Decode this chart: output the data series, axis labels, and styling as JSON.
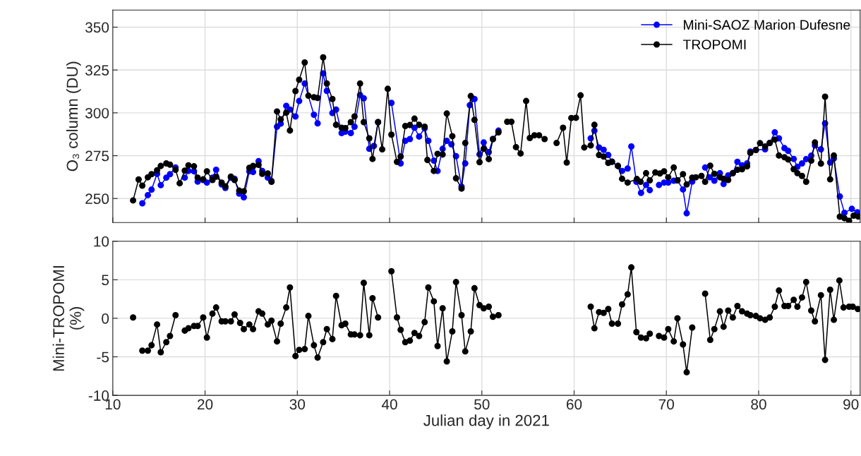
{
  "chart_data": [
    {
      "type": "line",
      "ylabel": "O₃ column (DU)",
      "xlim": [
        10,
        91
      ],
      "xticks": [
        10,
        20,
        30,
        40,
        50,
        60,
        70,
        80,
        90
      ],
      "ylim": [
        236,
        360
      ],
      "yticks": [
        250,
        275,
        300,
        325,
        350
      ],
      "tick_labels": "y",
      "grid": true,
      "marker": "circle",
      "line_style": "solid",
      "legend": "top right",
      "series": [
        {
          "name": "Mini-SAOZ Marion Dufesne",
          "color": "#0000ff",
          "x": [
            13.2,
            13.8,
            14.2,
            14.8,
            15.2,
            15.8,
            16.2,
            16.8,
            17.3,
            17.8,
            18.2,
            18.8,
            19.2,
            19.8,
            20.2,
            20.8,
            21.2,
            21.8,
            22.2,
            22.8,
            23.2,
            23.7,
            24.2,
            24.8,
            25.2,
            25.8,
            26.2,
            26.8,
            27.2,
            27.8,
            28.2,
            28.8,
            29.2,
            29.8,
            30.2,
            30.8,
            31.8,
            32.2,
            32.8,
            33.2,
            33.8,
            34.2,
            34.8,
            35.2,
            35.8,
            36.2,
            36.8,
            37.2,
            37.8,
            38.3,
            38.75,
            39.5,
            40.2,
            41.2,
            41.7,
            42.2,
            42.7,
            43.2,
            43.8,
            44.2,
            44.8,
            45.2,
            45.75,
            46.2,
            46.7,
            47.2,
            47.8,
            48.2,
            48.7,
            49.2,
            49.75,
            50.2,
            50.75,
            51.2,
            51.8,
            56.8,
            61.8,
            62.2,
            62.7,
            63.2,
            63.7,
            64.1,
            64.75,
            65.2,
            65.8,
            66.2,
            66.75,
            67.25,
            67.8,
            68.2,
            68.7,
            69.2,
            69.75,
            70.2,
            70.8,
            71.2,
            71.8,
            72.2,
            72.8,
            73.5,
            74.2,
            74.7,
            75.2,
            75.8,
            76.2,
            76.7,
            77.2,
            77.7,
            78.2,
            78.75,
            79.1,
            79.7,
            80.7,
            81.2,
            81.75,
            82.2,
            82.8,
            83.2,
            83.8,
            84.2,
            84.7,
            85.15,
            85.7,
            86.1,
            86.75,
            87.2,
            87.75,
            88.15,
            88.8,
            89.3,
            90.1,
            90.7
          ],
          "values": [
            247.2,
            252,
            255.2,
            264.4,
            257.8,
            262.2,
            264.2,
            268.1,
            null,
            262.2,
            266.1,
            265.9,
            259.9,
            260.8,
            259.3,
            262.2,
            266.8,
            258.2,
            256.2,
            262.2,
            261.5,
            252.9,
            250.7,
            265.9,
            265.5,
            271.8,
            266.1,
            262.2,
            260.2,
            291.9,
            293.7,
            304.1,
            301.9,
            297.9,
            306.9,
            317.1,
            298.9,
            293.9,
            323,
            312.8,
            299.9,
            301.9,
            288.2,
            289,
            288.2,
            291.9,
            310.4,
            308.5,
            279,
            280.7,
            294.6,
            null,
            305.8,
            270.5,
            283.7,
            284.7,
            291.3,
            286.2,
            291,
            283.7,
            272.1,
            266.1,
            279,
            283.7,
            281.6,
            274.7,
            256.9,
            270.5,
            304.5,
            308.1,
            275.8,
            282.7,
            277.1,
            284.7,
            289.6,
            null,
            285.1,
            289.6,
            279.8,
            278.4,
            275.4,
            271.4,
            269,
            266.1,
            267.5,
            280.4,
            259.8,
            253.3,
            257.9,
            254.9,
            null,
            257.9,
            259.3,
            259.3,
            260.4,
            260.6,
            255.3,
            241.4,
            259.9,
            null,
            268.1,
            262.4,
            260.4,
            264.8,
            258.5,
            263.5,
            264.8,
            271.4,
            269.4,
            270.5,
            277.4,
            278.3,
            278.7,
            282.4,
            288.6,
            285.1,
            279.4,
            277.8,
            273.1,
            268.5,
            270.5,
            273,
            275,
            281,
            278.7,
            293.9,
            271,
            273.4,
            251.2,
            241.7,
            244,
            242
          ]
        },
        {
          "name": "TROPOMI",
          "color": "#000000",
          "x": [
            12.2,
            12.8,
            13.2,
            13.8,
            14.2,
            14.8,
            15.2,
            15.8,
            16.2,
            16.8,
            17.25,
            17.8,
            18.2,
            18.8,
            19.2,
            19.8,
            20.2,
            20.8,
            21.2,
            21.8,
            22.2,
            22.8,
            23.2,
            23.7,
            24.2,
            24.8,
            25.2,
            25.8,
            26.2,
            26.8,
            27.2,
            27.8,
            28.2,
            28.8,
            29.2,
            29.8,
            30.2,
            30.8,
            31.2,
            31.8,
            32.2,
            32.8,
            33.2,
            33.8,
            34.2,
            34.8,
            35.2,
            35.8,
            36.2,
            36.8,
            37.2,
            37.8,
            38.15,
            38.75,
            39.2,
            39.8,
            40.2,
            40.8,
            41.2,
            41.7,
            42.2,
            42.7,
            43.2,
            43.8,
            44.1,
            44.8,
            45.2,
            45.75,
            46.2,
            46.8,
            47.2,
            47.8,
            48.2,
            48.8,
            49.2,
            49.75,
            50.2,
            50.75,
            51.2,
            51.8,
            52.3,
            52.75,
            53.2,
            53.7,
            54.2,
            54.8,
            55.2,
            55.7,
            56.2,
            56.8,
            57.5,
            58.1,
            58.8,
            59.2,
            59.7,
            60.2,
            60.7,
            61.1,
            61.8,
            62.2,
            62.7,
            63.2,
            63.7,
            64.1,
            64.75,
            65.2,
            65.8,
            66.8,
            67.2,
            67.8,
            68.2,
            68.8,
            69.3,
            69.75,
            70.2,
            70.8,
            71.2,
            71.8,
            72.2,
            72.8,
            73.2,
            73.8,
            74.2,
            74.75,
            75.2,
            75.8,
            76.2,
            76.7,
            77.2,
            77.7,
            78.2,
            78.75,
            79.1,
            79.7,
            80.15,
            80.7,
            81.2,
            81.75,
            82.2,
            82.8,
            83.2,
            83.8,
            84.2,
            84.7,
            85.15,
            85.7,
            86.1,
            86.75,
            87.2,
            87.75,
            88.15,
            88.8,
            89.3,
            89.8,
            90.3,
            90.8
          ],
          "values": [
            248.9,
            261.1,
            257.5,
            262.4,
            264.2,
            266.5,
            269,
            270.5,
            269.8,
            266.8,
            258.9,
            266.3,
            269.4,
            268.8,
            262.2,
            261.2,
            265.9,
            260.8,
            262.8,
            259.3,
            257.1,
            262.8,
            260.8,
            254.6,
            254.2,
            267.9,
            269,
            269.7,
            264.4,
            264.6,
            259.8,
            300.8,
            296.2,
            300.1,
            289.7,
            312.7,
            319.3,
            329.4,
            310,
            309.1,
            308.7,
            332.4,
            317.1,
            308.1,
            293,
            291.3,
            291.1,
            294.6,
            297.9,
            317.1,
            294.6,
            285.1,
            273.1,
            294.6,
            278.7,
            314,
            287.3,
            271.4,
            274.5,
            292.3,
            292.9,
            296.6,
            293,
            291.9,
            272.5,
            266.1,
            276.1,
            275.7,
            299.6,
            286.4,
            261.8,
            255.8,
            282.4,
            309.8,
            295.9,
            271.2,
            279.1,
            273,
            284.7,
            288.6,
            null,
            294.8,
            294.8,
            280,
            276.3,
            306.9,
            285.3,
            286.9,
            286.9,
            284.7,
            null,
            282.4,
            291.3,
            271,
            297,
            297.1,
            310.2,
            279.8,
            281,
            293,
            275.4,
            274.5,
            270.8,
            271.5,
            269,
            261.5,
            259.3,
            261.4,
            259.8,
            264.8,
            260.6,
            265.2,
            264.6,
            265.9,
            262.4,
            268.1,
            260.6,
            264.2,
            258.2,
            262.2,
            262.4,
            263.2,
            259.8,
            269.2,
            264.4,
            262.4,
            261.5,
            260.8,
            264.8,
            266.8,
            267.1,
            268.8,
            276.7,
            278.3,
            282.3,
            280.4,
            282.4,
            284.4,
            275.1,
            274.1,
            272.8,
            267.1,
            264.8,
            263.2,
            259.8,
            272.1,
            282.7,
            270.4,
            309.4,
            261.2,
            275.1,
            239.4,
            238.5,
            237,
            240,
            239.5
          ]
        }
      ]
    },
    {
      "type": "line",
      "xlabel": "Julian day in 2021",
      "ylabel": "Mini-TROPOMI\n(%)",
      "xlim": [
        10,
        91
      ],
      "xticks": [
        10,
        20,
        30,
        40,
        50,
        60,
        70,
        80,
        90
      ],
      "ylim": [
        -10,
        10
      ],
      "yticks": [
        -10,
        -5,
        0,
        5,
        10
      ],
      "grid": true,
      "marker": "circle",
      "line_style": "solid",
      "series": [
        {
          "color": "#000000",
          "x": [
            12.2,
            12.7,
            13.2,
            13.8,
            14.2,
            14.8,
            15.2,
            15.8,
            16.2,
            16.8,
            17.3,
            17.8,
            18.2,
            18.8,
            19.2,
            19.8,
            20.2,
            20.8,
            21.2,
            21.8,
            22.2,
            22.8,
            23.2,
            23.8,
            24.2,
            24.8,
            25.2,
            25.8,
            26.2,
            26.8,
            27.2,
            27.8,
            28.2,
            28.8,
            29.2,
            29.8,
            30.2,
            30.8,
            31.2,
            31.8,
            32.2,
            32.8,
            33.2,
            33.8,
            34.2,
            34.8,
            35.2,
            35.8,
            36.2,
            36.8,
            37.2,
            37.8,
            38.15,
            38.75,
            39.5,
            40.2,
            40.8,
            41.2,
            41.7,
            42.2,
            42.7,
            43.2,
            43.8,
            44.2,
            44.8,
            45.2,
            45.75,
            46.2,
            46.8,
            47.2,
            47.8,
            48.2,
            48.8,
            49.2,
            49.75,
            50.2,
            50.75,
            51.2,
            51.8,
            56.8,
            61.8,
            62.2,
            62.7,
            63.2,
            63.7,
            64.1,
            64.75,
            65.2,
            65.8,
            66.2,
            66.75,
            67.25,
            67.8,
            68.2,
            68.7,
            69.2,
            69.75,
            70.2,
            70.8,
            71.2,
            71.8,
            72.2,
            72.8,
            73.5,
            74.2,
            74.75,
            75.2,
            75.8,
            76.2,
            76.7,
            77.2,
            77.7,
            78.2,
            78.75,
            79.1,
            79.7,
            80.15,
            80.7,
            81.2,
            81.75,
            82.2,
            82.8,
            83.2,
            83.8,
            84.2,
            84.7,
            85.15,
            85.7,
            86.1,
            86.75,
            87.2,
            87.75,
            88.15,
            88.75,
            89.2,
            89.8,
            90.2,
            90.75
          ],
          "values": [
            0.1,
            null,
            -4.2,
            -4.2,
            -3.5,
            -0.8,
            -4.4,
            -3.1,
            -2.3,
            0.4,
            null,
            -1.6,
            -1.3,
            -1.0,
            -1.0,
            0.1,
            -2.5,
            0.6,
            1.4,
            -0.4,
            -0.4,
            -0.4,
            0.5,
            -0.6,
            -1.4,
            -0.8,
            -1.4,
            0.9,
            0.6,
            -0.8,
            -0.3,
            -3.0,
            -0.7,
            1.4,
            4.0,
            -4.9,
            -4.1,
            -4.0,
            0.3,
            -3.5,
            -5.1,
            -3.1,
            -1.4,
            -2.7,
            2.9,
            -0.9,
            -0.7,
            -2.1,
            -2.1,
            -2.2,
            4.6,
            -2.2,
            2.6,
            0.1,
            null,
            6.1,
            0.1,
            -1.5,
            -3.1,
            -2.9,
            -1.9,
            -2.3,
            -0.5,
            4.0,
            2.2,
            -3.6,
            1.3,
            -5.6,
            -1.7,
            4.7,
            0.4,
            -4.3,
            -1.7,
            3.9,
            1.7,
            1.3,
            1.5,
            0.2,
            0.4,
            null,
            1.5,
            -1.3,
            0.8,
            0.7,
            1.2,
            -0.7,
            -0.7,
            1.8,
            3.1,
            6.6,
            -1.8,
            -2.5,
            -2.6,
            -2.0,
            null,
            -2.3,
            -2.5,
            -1.4,
            -3.0,
            0.0,
            -3.4,
            -7.0,
            -1.2,
            null,
            3.2,
            -2.8,
            -1.4,
            0.9,
            -1.1,
            1.0,
            0.1,
            1.6,
            0.9,
            0.6,
            0.4,
            0.3,
            0.0,
            -0.2,
            0.1,
            1.5,
            3.6,
            1.6,
            1.6,
            2.4,
            1.5,
            2.7,
            4.7,
            1.0,
            -0.4,
            3.0,
            -5.4,
            3.7,
            -0.2,
            4.9,
            1.4,
            1.5,
            1.5,
            1.2
          ]
        }
      ]
    }
  ]
}
